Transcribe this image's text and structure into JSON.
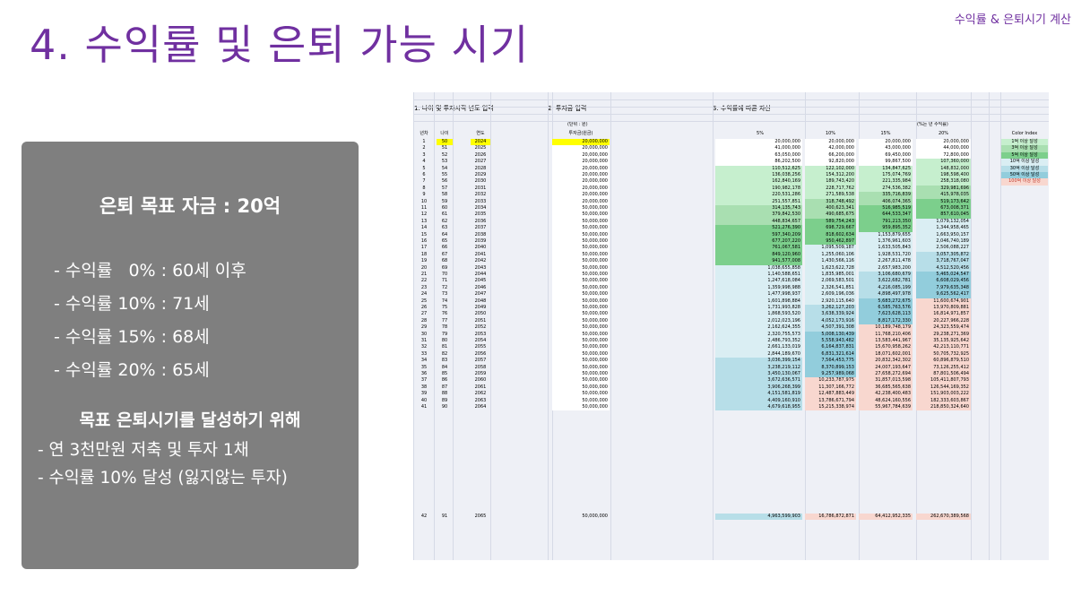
{
  "header_tag": "수익률 & 은퇴시기 계산",
  "title": "4. 수익률 및 은퇴 가능 시기",
  "panel": {
    "goal": "은퇴 목표 자금 : 20억",
    "rates": [
      "- 수익률   0% : 60세 이후",
      "- 수익률 10% : 71세",
      "- 수익률 15% : 68세",
      "- 수익률 20% : 65세"
    ],
    "subtitle": "목표 은퇴시기를 달성하기 위해",
    "actions": [
      "- 연 3천만원 저축 및 투자 1채",
      "- 수익률 10% 달성 (잃지않는 투자)"
    ]
  },
  "sheet": {
    "section1": "1. 나이 및 투자시작 년도 입력",
    "section2": "2. 투자금 입력",
    "section3": "3. 수익률에 따른 자산",
    "unit_note": "(단위 : 원)",
    "rate_note": "(%는 년 수익률)",
    "headers": [
      "년차",
      "나이",
      "연도",
      "투자금(원금)",
      "5%",
      "10%",
      "15%",
      "20%",
      "Color Index"
    ],
    "legend": [
      {
        "label": "1억 이상 달성",
        "color": "#c6efce"
      },
      {
        "label": "3억 이상 달성",
        "color": "#a9dfb1"
      },
      {
        "label": "5억 이상 달성",
        "color": "#7ccf8c"
      },
      {
        "label": "10억 이상 달성",
        "color": "#daeef3"
      },
      {
        "label": "30억 이상 달성",
        "color": "#b7dee8"
      },
      {
        "label": "50억 이상 달성",
        "color": "#92cddc"
      },
      {
        "label": "100억 이상 달성",
        "color": "#f8d7cf"
      }
    ],
    "rows": [
      [
        "1",
        "50",
        "2024",
        "20,000,000",
        "20,000,000",
        "20,000,000",
        "20,000,000",
        "20,000,000"
      ],
      [
        "2",
        "51",
        "2025",
        "20,000,000",
        "41,000,000",
        "42,000,000",
        "43,000,000",
        "44,000,000"
      ],
      [
        "3",
        "52",
        "2026",
        "20,000,000",
        "63,050,000",
        "66,200,000",
        "69,450,000",
        "72,800,000"
      ],
      [
        "4",
        "53",
        "2027",
        "20,000,000",
        "86,202,500",
        "92,820,000",
        "99,867,500",
        "107,360,000"
      ],
      [
        "5",
        "54",
        "2028",
        "20,000,000",
        "110,512,625",
        "122,102,000",
        "134,847,625",
        "148,832,000"
      ],
      [
        "6",
        "55",
        "2029",
        "20,000,000",
        "136,038,256",
        "154,312,200",
        "175,074,769",
        "198,598,400"
      ],
      [
        "7",
        "56",
        "2030",
        "20,000,000",
        "162,840,169",
        "189,743,420",
        "221,335,984",
        "258,318,080"
      ],
      [
        "8",
        "57",
        "2031",
        "20,000,000",
        "190,982,178",
        "228,717,762",
        "274,536,382",
        "329,981,696"
      ],
      [
        "9",
        "58",
        "2032",
        "20,000,000",
        "220,531,286",
        "271,589,538",
        "335,716,839",
        "415,978,035"
      ],
      [
        "10",
        "59",
        "2033",
        "20,000,000",
        "251,557,851",
        "318,748,492",
        "406,074,365",
        "519,173,642"
      ],
      [
        "11",
        "60",
        "2034",
        "50,000,000",
        "314,135,743",
        "400,623,341",
        "516,985,519",
        "673,008,371"
      ],
      [
        "12",
        "61",
        "2035",
        "50,000,000",
        "379,842,530",
        "490,685,675",
        "644,533,347",
        "857,610,045"
      ],
      [
        "13",
        "62",
        "2036",
        "50,000,000",
        "448,834,657",
        "589,754,243",
        "791,213,350",
        "1,079,132,054"
      ],
      [
        "14",
        "63",
        "2037",
        "50,000,000",
        "521,276,390",
        "698,729,667",
        "959,895,352",
        "1,344,958,465"
      ],
      [
        "15",
        "64",
        "2038",
        "50,000,000",
        "597,340,209",
        "818,602,634",
        "1,153,879,655",
        "1,663,950,157"
      ],
      [
        "16",
        "65",
        "2039",
        "50,000,000",
        "677,207,220",
        "950,462,897",
        "1,376,961,603",
        "2,046,740,189"
      ],
      [
        "17",
        "66",
        "2040",
        "50,000,000",
        "761,067,581",
        "1,095,509,187",
        "1,633,505,843",
        "2,506,088,227"
      ],
      [
        "18",
        "67",
        "2041",
        "50,000,000",
        "849,120,960",
        "1,255,060,106",
        "1,928,531,720",
        "3,057,305,872"
      ],
      [
        "19",
        "68",
        "2042",
        "50,000,000",
        "941,577,008",
        "1,430,566,116",
        "2,267,811,478",
        "3,718,767,047"
      ],
      [
        "20",
        "69",
        "2043",
        "50,000,000",
        "1,038,655,858",
        "1,623,622,728",
        "2,657,983,200",
        "4,512,520,456"
      ],
      [
        "21",
        "70",
        "2044",
        "50,000,000",
        "1,140,588,651",
        "1,835,985,001",
        "3,106,680,679",
        "5,465,024,547"
      ],
      [
        "22",
        "71",
        "2045",
        "50,000,000",
        "1,247,618,084",
        "2,069,583,501",
        "3,622,682,781",
        "6,608,029,456"
      ],
      [
        "23",
        "72",
        "2046",
        "50,000,000",
        "1,359,998,988",
        "2,326,541,851",
        "4,216,085,199",
        "7,979,635,348"
      ],
      [
        "24",
        "73",
        "2047",
        "50,000,000",
        "1,477,998,937",
        "2,609,196,036",
        "4,898,497,978",
        "9,625,562,417"
      ],
      [
        "25",
        "74",
        "2048",
        "50,000,000",
        "1,601,898,884",
        "2,920,115,640",
        "5,683,272,675",
        "11,600,674,901"
      ],
      [
        "26",
        "75",
        "2049",
        "50,000,000",
        "1,731,993,828",
        "3,262,127,203",
        "6,585,763,576",
        "13,970,809,881"
      ],
      [
        "27",
        "76",
        "2050",
        "50,000,000",
        "1,868,593,520",
        "3,638,339,924",
        "7,623,628,113",
        "16,814,971,857"
      ],
      [
        "28",
        "77",
        "2051",
        "50,000,000",
        "2,012,023,196",
        "4,052,173,916",
        "8,817,172,330",
        "20,227,966,228"
      ],
      [
        "29",
        "78",
        "2052",
        "50,000,000",
        "2,162,624,355",
        "4,507,391,308",
        "10,189,748,179",
        "24,323,559,474"
      ],
      [
        "30",
        "79",
        "2053",
        "50,000,000",
        "2,320,755,573",
        "5,008,130,439",
        "11,768,210,406",
        "29,238,271,369"
      ],
      [
        "31",
        "80",
        "2054",
        "50,000,000",
        "2,486,793,352",
        "5,558,943,482",
        "13,583,441,967",
        "35,135,925,642"
      ],
      [
        "32",
        "81",
        "2055",
        "50,000,000",
        "2,661,133,019",
        "6,164,837,831",
        "15,670,958,262",
        "42,213,110,771"
      ],
      [
        "33",
        "82",
        "2056",
        "50,000,000",
        "2,844,189,670",
        "6,831,321,614",
        "18,071,602,001",
        "50,705,732,925"
      ],
      [
        "34",
        "83",
        "2057",
        "50,000,000",
        "3,036,399,154",
        "7,564,453,775",
        "20,832,342,302",
        "60,896,879,510"
      ],
      [
        "35",
        "84",
        "2058",
        "50,000,000",
        "3,238,219,112",
        "8,370,899,153",
        "24,007,193,647",
        "73,126,255,412"
      ],
      [
        "36",
        "85",
        "2059",
        "50,000,000",
        "3,450,130,067",
        "9,257,989,068",
        "27,658,272,694",
        "87,801,506,494"
      ],
      [
        "37",
        "86",
        "2060",
        "50,000,000",
        "3,672,636,571",
        "10,233,787,975",
        "31,857,013,598",
        "105,411,807,793"
      ],
      [
        "38",
        "87",
        "2061",
        "50,000,000",
        "3,906,268,399",
        "11,307,166,772",
        "36,685,565,638",
        "126,544,169,352"
      ],
      [
        "39",
        "88",
        "2062",
        "50,000,000",
        "4,151,581,819",
        "12,487,883,449",
        "42,238,400,483",
        "151,903,003,222"
      ],
      [
        "40",
        "89",
        "2063",
        "50,000,000",
        "4,409,160,910",
        "13,786,671,794",
        "48,624,160,556",
        "182,333,603,867"
      ],
      [
        "41",
        "90",
        "2064",
        "50,000,000",
        "4,679,618,955",
        "15,215,338,974",
        "55,967,784,639",
        "218,850,324,640"
      ]
    ],
    "final_row": [
      "42",
      "91",
      "2065",
      "50,000,000",
      "4,963,599,903",
      "16,786,872,871",
      "64,412,952,335",
      "262,670,389,568"
    ]
  }
}
